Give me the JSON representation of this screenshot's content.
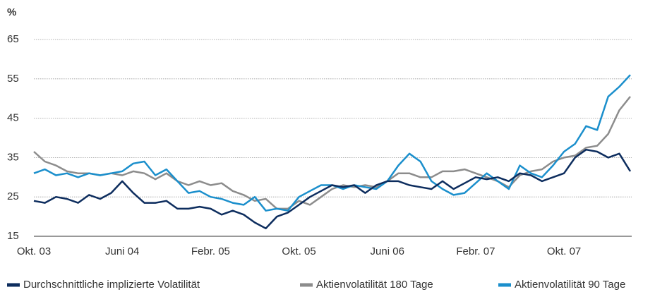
{
  "chart_data": {
    "type": "line",
    "y_label": "%",
    "categories": [
      "Okt. 03",
      null,
      null,
      null,
      null,
      null,
      null,
      null,
      "Juni 04",
      null,
      null,
      null,
      null,
      null,
      null,
      null,
      "Febr. 05",
      null,
      null,
      null,
      null,
      null,
      null,
      null,
      "Okt. 05",
      null,
      null,
      null,
      null,
      null,
      null,
      null,
      "Juni 06",
      null,
      null,
      null,
      null,
      null,
      null,
      null,
      "Febr. 07",
      null,
      null,
      null,
      null,
      null,
      null,
      null,
      "Okt. 07",
      null,
      null,
      null,
      null,
      null,
      null
    ],
    "series": [
      {
        "name": "Durchschnittliche implizierte Volatilität",
        "color": "#0d2d5e",
        "values": [
          24,
          23.5,
          25,
          24.5,
          23.5,
          25.5,
          24.5,
          26,
          29,
          26,
          23.5,
          23.5,
          24,
          22,
          22,
          22.5,
          22,
          20.5,
          21.5,
          20.5,
          18.5,
          17,
          20,
          21,
          23,
          25,
          26.5,
          28,
          27.5,
          28,
          26,
          28,
          29,
          29,
          28,
          27.5,
          27,
          29,
          27,
          28.5,
          30,
          29.5,
          30,
          29,
          31,
          30.5,
          29,
          30,
          31,
          35,
          37,
          36.5,
          35,
          36,
          31.5
        ]
      },
      {
        "name": "Aktienvolatilität 180 Tage",
        "color": "#8c8c8c",
        "values": [
          36.5,
          34,
          33,
          31.5,
          31,
          31,
          30.5,
          31,
          30.5,
          31.5,
          31,
          29.5,
          31,
          29,
          28,
          29,
          28,
          28.5,
          26.5,
          25.5,
          24,
          24.5,
          22,
          22,
          24,
          23,
          25,
          27,
          28,
          27.5,
          28,
          27.5,
          29,
          31,
          31,
          30,
          30,
          31.5,
          31.5,
          32,
          31,
          30,
          29,
          27.5,
          30.5,
          31.5,
          32,
          34,
          35,
          35.5,
          37.5,
          38,
          41,
          47,
          50.5
        ]
      },
      {
        "name": "Aktienvolatilität 90 Tage",
        "color": "#1b8fcc",
        "values": [
          31,
          32,
          30.5,
          31,
          30,
          31,
          30.5,
          31,
          31.5,
          33.5,
          34,
          30.5,
          32,
          29,
          26,
          26.5,
          25,
          24.5,
          23.5,
          23,
          25,
          21.5,
          22,
          21.5,
          25,
          26.5,
          28,
          28,
          27,
          28,
          27.5,
          27,
          29,
          33,
          36,
          34,
          29,
          27,
          25.5,
          26,
          28.5,
          31,
          29,
          27,
          33,
          31,
          30,
          33,
          36.5,
          38.5,
          43,
          42,
          50.5,
          53,
          56
        ]
      }
    ],
    "ylim": [
      15,
      65
    ],
    "yticks": [
      15,
      25,
      35,
      45,
      55,
      65
    ],
    "grid": true
  }
}
